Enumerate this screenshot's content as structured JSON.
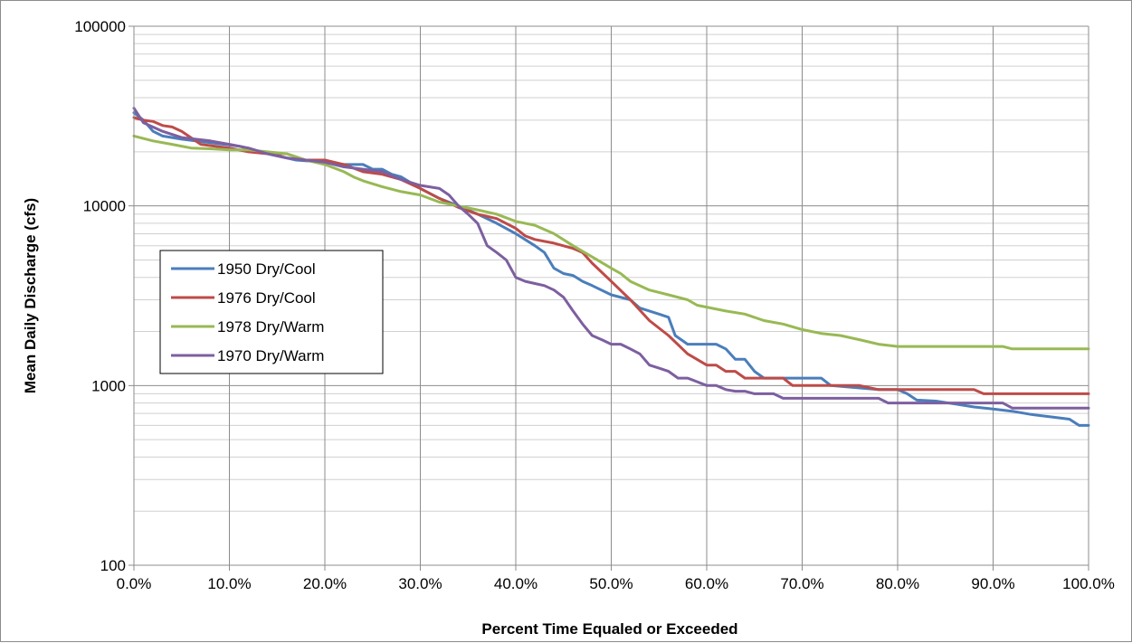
{
  "chart_data": {
    "type": "line",
    "title": "",
    "xlabel": "Percent Time Equaled or Exceeded",
    "ylabel": "Mean Daily Discharge (cfs)",
    "x_scale": "linear",
    "y_scale": "log",
    "xlim": [
      0,
      100
    ],
    "ylim": [
      100,
      100000
    ],
    "x_ticks": [
      0,
      10,
      20,
      30,
      40,
      50,
      60,
      70,
      80,
      90,
      100
    ],
    "x_tick_labels": [
      "0.0%",
      "10.0%",
      "20.0%",
      "30.0%",
      "40.0%",
      "50.0%",
      "60.0%",
      "70.0%",
      "80.0%",
      "90.0%",
      "100.0%"
    ],
    "y_ticks": [
      100,
      1000,
      10000,
      100000
    ],
    "y_tick_labels": [
      "100",
      "1000",
      "10000",
      "100000"
    ],
    "grid": true,
    "legend_position": "left-middle",
    "series": [
      {
        "name": "1950 Dry/Cool",
        "color": "#4a7ebb",
        "points": [
          [
            0,
            33000
          ],
          [
            1,
            30000
          ],
          [
            2,
            26000
          ],
          [
            3,
            24500
          ],
          [
            5,
            23500
          ],
          [
            8,
            22500
          ],
          [
            11,
            21500
          ],
          [
            14,
            19500
          ],
          [
            17,
            18000
          ],
          [
            20,
            17500
          ],
          [
            22,
            17000
          ],
          [
            24,
            17000
          ],
          [
            25,
            16000
          ],
          [
            26,
            16000
          ],
          [
            27,
            15000
          ],
          [
            28,
            14500
          ],
          [
            30,
            12500
          ],
          [
            32,
            11000
          ],
          [
            34,
            10000
          ],
          [
            36,
            9000
          ],
          [
            38,
            8000
          ],
          [
            40,
            7000
          ],
          [
            42,
            6000
          ],
          [
            43,
            5500
          ],
          [
            44,
            4500
          ],
          [
            45,
            4200
          ],
          [
            46,
            4100
          ],
          [
            47,
            3800
          ],
          [
            48,
            3600
          ],
          [
            50,
            3200
          ],
          [
            52,
            3000
          ],
          [
            53,
            2700
          ],
          [
            55,
            2500
          ],
          [
            56,
            2400
          ],
          [
            56.7,
            1900
          ],
          [
            58,
            1700
          ],
          [
            61,
            1700
          ],
          [
            62,
            1600
          ],
          [
            63,
            1400
          ],
          [
            64,
            1400
          ],
          [
            65,
            1200
          ],
          [
            66,
            1100
          ],
          [
            72,
            1100
          ],
          [
            73,
            1000
          ],
          [
            78,
            950
          ],
          [
            80,
            950
          ],
          [
            81,
            900
          ],
          [
            82,
            830
          ],
          [
            84,
            820
          ],
          [
            86,
            790
          ],
          [
            88,
            760
          ],
          [
            90,
            740
          ],
          [
            92,
            720
          ],
          [
            94,
            690
          ],
          [
            96,
            670
          ],
          [
            98,
            650
          ],
          [
            99,
            600
          ],
          [
            100,
            600
          ]
        ]
      },
      {
        "name": "1976 Dry/Cool",
        "color": "#be4b48",
        "points": [
          [
            0,
            31000
          ],
          [
            1,
            30000
          ],
          [
            2,
            29500
          ],
          [
            3,
            28000
          ],
          [
            4,
            27500
          ],
          [
            5,
            26000
          ],
          [
            7,
            22000
          ],
          [
            10,
            21000
          ],
          [
            12,
            20000
          ],
          [
            14,
            19500
          ],
          [
            16,
            19500
          ],
          [
            18,
            18000
          ],
          [
            20,
            18000
          ],
          [
            22,
            17000
          ],
          [
            24,
            15500
          ],
          [
            26,
            15000
          ],
          [
            28,
            14000
          ],
          [
            30,
            12500
          ],
          [
            32,
            11000
          ],
          [
            34,
            9800
          ],
          [
            36,
            9000
          ],
          [
            38,
            8500
          ],
          [
            40,
            7500
          ],
          [
            41,
            6800
          ],
          [
            42,
            6500
          ],
          [
            44,
            6200
          ],
          [
            46,
            5800
          ],
          [
            47,
            5500
          ],
          [
            48,
            4800
          ],
          [
            50,
            3800
          ],
          [
            52,
            3000
          ],
          [
            54,
            2300
          ],
          [
            56,
            1900
          ],
          [
            58,
            1500
          ],
          [
            60,
            1300
          ],
          [
            61,
            1300
          ],
          [
            62,
            1200
          ],
          [
            63,
            1200
          ],
          [
            64,
            1100
          ],
          [
            67,
            1100
          ],
          [
            68,
            1100
          ],
          [
            69,
            1000
          ],
          [
            76,
            1000
          ],
          [
            78,
            950
          ],
          [
            88,
            950
          ],
          [
            89,
            900
          ],
          [
            100,
            900
          ]
        ]
      },
      {
        "name": "1978 Dry/Warm",
        "color": "#98b954",
        "points": [
          [
            0,
            24500
          ],
          [
            2,
            23000
          ],
          [
            4,
            22000
          ],
          [
            6,
            21000
          ],
          [
            8,
            20800
          ],
          [
            10,
            20500
          ],
          [
            12,
            20500
          ],
          [
            14,
            20000
          ],
          [
            16,
            19500
          ],
          [
            18,
            18000
          ],
          [
            20,
            17000
          ],
          [
            22,
            15500
          ],
          [
            23,
            14500
          ],
          [
            24,
            13800
          ],
          [
            26,
            12800
          ],
          [
            28,
            12000
          ],
          [
            30,
            11500
          ],
          [
            32,
            10500
          ],
          [
            34,
            10000
          ],
          [
            36,
            9500
          ],
          [
            38,
            9000
          ],
          [
            40,
            8200
          ],
          [
            42,
            7800
          ],
          [
            44,
            7000
          ],
          [
            46,
            6000
          ],
          [
            48,
            5200
          ],
          [
            50,
            4500
          ],
          [
            51,
            4200
          ],
          [
            52,
            3800
          ],
          [
            54,
            3400
          ],
          [
            56,
            3200
          ],
          [
            58,
            3000
          ],
          [
            59,
            2800
          ],
          [
            62,
            2600
          ],
          [
            64,
            2500
          ],
          [
            66,
            2300
          ],
          [
            68,
            2200
          ],
          [
            70,
            2050
          ],
          [
            72,
            1950
          ],
          [
            74,
            1900
          ],
          [
            76,
            1800
          ],
          [
            78,
            1700
          ],
          [
            80,
            1650
          ],
          [
            81,
            1650
          ],
          [
            91,
            1650
          ],
          [
            92,
            1600
          ],
          [
            100,
            1600
          ]
        ]
      },
      {
        "name": "1970 Dry/Warm",
        "color": "#7d5fa0",
        "points": [
          [
            0,
            35000
          ],
          [
            1,
            29000
          ],
          [
            3,
            26000
          ],
          [
            5,
            24000
          ],
          [
            8,
            23000
          ],
          [
            10,
            22000
          ],
          [
            12,
            21000
          ],
          [
            14,
            19500
          ],
          [
            16,
            18500
          ],
          [
            18,
            18000
          ],
          [
            20,
            17500
          ],
          [
            22,
            16500
          ],
          [
            24,
            16000
          ],
          [
            26,
            15500
          ],
          [
            28,
            14000
          ],
          [
            30,
            13000
          ],
          [
            32,
            12500
          ],
          [
            33,
            11500
          ],
          [
            34,
            10000
          ],
          [
            35,
            9000
          ],
          [
            36,
            8000
          ],
          [
            37,
            6000
          ],
          [
            38,
            5500
          ],
          [
            39,
            5000
          ],
          [
            40,
            4000
          ],
          [
            41,
            3800
          ],
          [
            42,
            3700
          ],
          [
            43,
            3600
          ],
          [
            44,
            3400
          ],
          [
            45,
            3100
          ],
          [
            46,
            2600
          ],
          [
            47,
            2200
          ],
          [
            48,
            1900
          ],
          [
            49,
            1800
          ],
          [
            50,
            1700
          ],
          [
            51,
            1700
          ],
          [
            52,
            1600
          ],
          [
            53,
            1500
          ],
          [
            54,
            1300
          ],
          [
            55,
            1250
          ],
          [
            56,
            1200
          ],
          [
            57,
            1100
          ],
          [
            58,
            1100
          ],
          [
            59,
            1050
          ],
          [
            60,
            1000
          ],
          [
            61,
            1000
          ],
          [
            62,
            950
          ],
          [
            63,
            930
          ],
          [
            64,
            930
          ],
          [
            65,
            900
          ],
          [
            66,
            900
          ],
          [
            67,
            900
          ],
          [
            68,
            850
          ],
          [
            78,
            850
          ],
          [
            79,
            800
          ],
          [
            91,
            800
          ],
          [
            92,
            750
          ],
          [
            100,
            750
          ]
        ]
      }
    ]
  }
}
